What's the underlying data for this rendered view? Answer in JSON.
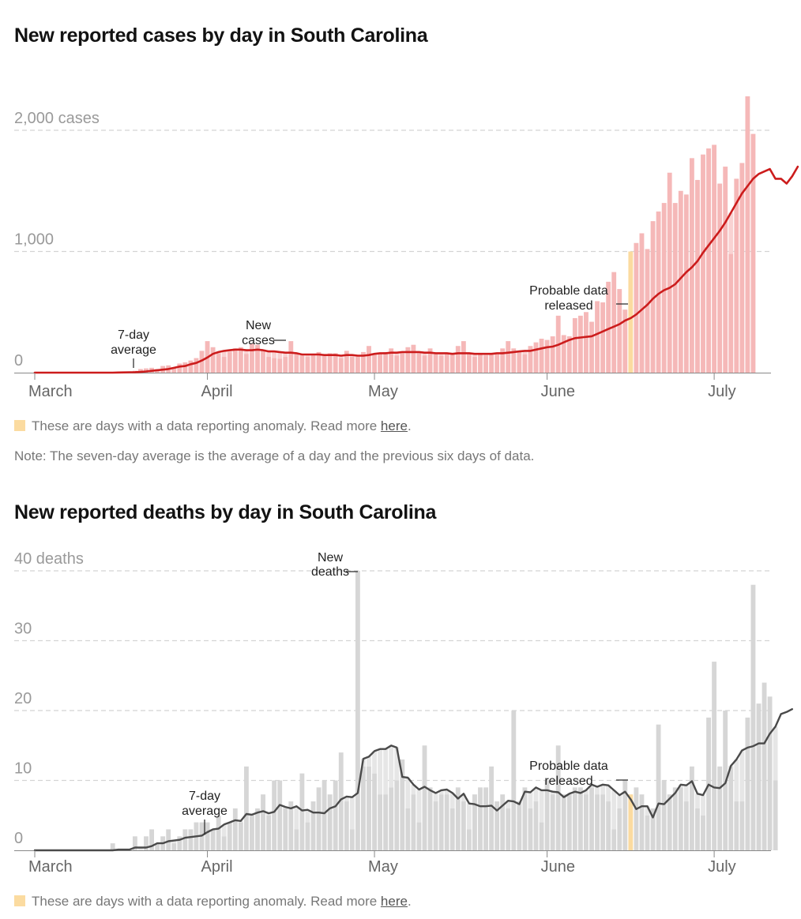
{
  "charts": {
    "cases": {
      "title": "New reported cases by day in South Carolina",
      "legend_text": "These are days with a data reporting anomaly. Read more ",
      "legend_link": "here",
      "legend_end": ".",
      "note": "Note: The seven-day average is the average of a day and the previous six days of data."
    },
    "deaths": {
      "title": "New reported deaths by day in South Carolina",
      "legend_text": "These are days with a data reporting anomaly. Read more ",
      "legend_link": "here",
      "legend_end": "."
    }
  },
  "colors": {
    "cases_bar": "#f5b8b8",
    "cases_bar_light": "#f9d2d2",
    "cases_line": "#cc1c1c",
    "deaths_bar": "#d6d6d6",
    "deaths_bar_light": "#e6e6e6",
    "deaths_line": "#4a4a4a",
    "anomaly": "#fbdba0"
  },
  "chart_data": [
    {
      "type": "bar",
      "id": "cases",
      "title": "New reported cases by day in South Carolina",
      "start_date": "Mar 1",
      "x_tick_labels": [
        "March",
        "April",
        "May",
        "June",
        "July"
      ],
      "x_tick_days": [
        0,
        31,
        61,
        92,
        122
      ],
      "y_ticks": [
        0,
        1000,
        2000
      ],
      "y_tick_labels": [
        "0",
        "1,000",
        "2,000 cases"
      ],
      "ylim": [
        0,
        2000
      ],
      "anomaly_days": [
        107
      ],
      "annotations": [
        {
          "text": [
            "7-day",
            "average"
          ],
          "day": 18,
          "target": "average"
        },
        {
          "text": [
            "New",
            "cases"
          ],
          "day": 45,
          "target": "bar"
        },
        {
          "text": [
            "Probable data",
            "released"
          ],
          "day": 107,
          "target": "anomaly"
        }
      ],
      "series": [
        {
          "name": "New cases",
          "values": [
            0,
            0,
            0,
            0,
            0,
            0,
            0,
            0,
            0,
            0,
            0,
            0,
            0,
            0,
            1,
            2,
            5,
            9,
            15,
            30,
            35,
            40,
            30,
            55,
            60,
            45,
            75,
            85,
            100,
            120,
            180,
            260,
            210,
            160,
            130,
            170,
            200,
            210,
            155,
            240,
            230,
            190,
            130,
            120,
            115,
            130,
            260,
            150,
            140,
            130,
            150,
            170,
            140,
            160,
            160,
            120,
            180,
            130,
            130,
            170,
            220,
            150,
            160,
            170,
            200,
            140,
            160,
            210,
            230,
            160,
            140,
            200,
            150,
            140,
            160,
            150,
            220,
            260,
            160,
            130,
            150,
            140,
            150,
            150,
            200,
            260,
            200,
            170,
            150,
            220,
            250,
            280,
            270,
            300,
            470,
            310,
            300,
            450,
            470,
            500,
            420,
            590,
            580,
            750,
            830,
            690,
            520,
            1000,
            1070,
            1150,
            1020,
            1250,
            1330,
            1400,
            1650,
            1400,
            1500,
            1470,
            1770,
            1590,
            1800,
            1850,
            1880,
            1560,
            1700,
            980,
            1600,
            1730,
            2280,
            1970
          ]
        },
        {
          "name": "7-day average",
          "values": [
            0,
            0,
            0,
            0,
            0,
            0,
            0,
            0,
            0,
            0,
            0,
            0,
            0,
            0,
            0,
            1,
            2,
            3,
            4,
            6,
            10,
            15,
            20,
            25,
            30,
            40,
            50,
            55,
            70,
            80,
            100,
            125,
            155,
            170,
            180,
            185,
            190,
            190,
            185,
            185,
            190,
            185,
            175,
            175,
            170,
            165,
            165,
            160,
            150,
            150,
            150,
            150,
            145,
            145,
            145,
            140,
            145,
            145,
            140,
            140,
            145,
            155,
            160,
            160,
            165,
            165,
            170,
            170,
            170,
            170,
            165,
            165,
            160,
            160,
            160,
            155,
            160,
            160,
            160,
            155,
            155,
            155,
            155,
            160,
            160,
            165,
            170,
            175,
            180,
            180,
            190,
            200,
            210,
            215,
            230,
            250,
            270,
            285,
            290,
            295,
            300,
            320,
            340,
            360,
            380,
            400,
            430,
            450,
            480,
            520,
            560,
            610,
            650,
            680,
            700,
            730,
            780,
            830,
            870,
            920,
            990,
            1050,
            1110,
            1170,
            1240,
            1320,
            1400,
            1480,
            1540,
            1600,
            1640,
            1660,
            1680,
            1600,
            1600,
            1560,
            1620,
            1700
          ]
        }
      ]
    },
    {
      "type": "bar",
      "id": "deaths",
      "title": "New reported deaths by day in South Carolina",
      "start_date": "Mar 1",
      "x_tick_labels": [
        "March",
        "April",
        "May",
        "June",
        "July"
      ],
      "x_tick_days": [
        0,
        31,
        61,
        92,
        122
      ],
      "y_ticks": [
        0,
        10,
        20,
        30,
        40
      ],
      "y_tick_labels": [
        "0",
        "10",
        "20",
        "30",
        "40 deaths"
      ],
      "ylim": [
        0,
        40
      ],
      "anomaly_days": [
        107
      ],
      "annotations": [
        {
          "text": [
            "7-day",
            "average"
          ],
          "day": 31,
          "target": "average"
        },
        {
          "text": [
            "New",
            "deaths"
          ],
          "day": 58,
          "target": "bar"
        },
        {
          "text": [
            "Probable data",
            "released"
          ],
          "day": 107,
          "target": "anomaly"
        }
      ],
      "series": [
        {
          "name": "New deaths",
          "values": [
            0,
            0,
            0,
            0,
            0,
            0,
            0,
            0,
            0,
            0,
            0,
            0,
            0,
            0,
            1,
            0,
            0,
            0,
            2,
            0,
            2,
            3,
            1,
            2,
            3,
            1,
            2,
            3,
            3,
            4,
            4,
            4,
            3,
            5,
            2,
            4,
            6,
            4,
            12,
            5,
            6,
            8,
            5,
            10,
            10,
            6,
            7,
            3,
            11,
            4,
            7,
            9,
            10,
            8,
            10,
            14,
            7,
            3,
            40,
            12,
            12,
            11,
            8,
            8,
            9,
            10,
            13,
            6,
            8,
            4,
            15,
            9,
            7,
            8,
            8,
            6,
            9,
            7,
            3,
            8,
            9,
            9,
            12,
            7,
            8,
            6,
            20,
            7,
            9,
            6,
            7,
            4,
            10,
            8,
            15,
            8,
            8,
            9,
            9,
            8,
            9,
            8,
            8,
            7,
            3,
            6,
            10,
            8,
            9,
            8,
            5,
            6,
            18,
            10,
            8,
            9,
            9,
            7,
            12,
            6,
            5,
            19,
            27,
            12,
            20,
            12,
            7,
            7,
            19,
            38,
            21,
            24,
            22,
            10
          ]
        },
        {
          "name": "7-day average",
          "values": [
            0,
            0,
            0,
            0,
            0,
            0,
            0,
            0,
            0,
            0,
            0,
            0,
            0,
            0,
            0,
            0.1,
            0.1,
            0.1,
            0.4,
            0.4,
            0.4,
            0.6,
            1,
            1,
            1.3,
            1.4,
            1.5,
            1.8,
            1.9,
            2,
            2.1,
            2.6,
            3,
            3.1,
            3.7,
            4,
            4.3,
            4.2,
            5.2,
            5.1,
            5.4,
            5.6,
            5.3,
            5.5,
            6.5,
            6.2,
            6,
            6.3,
            5.7,
            5.8,
            5.4,
            5.4,
            5.3,
            6,
            6.3,
            7.3,
            7.7,
            7.6,
            8.2,
            13.1,
            13.4,
            14.2,
            14.5,
            14.5,
            15,
            14.7,
            10.5,
            10.4,
            9.4,
            8.7,
            9.1,
            8.6,
            8.2,
            8.6,
            8.7,
            8.2,
            7.4,
            8.1,
            6.7,
            6.6,
            6.3,
            6.3,
            6.4,
            5.7,
            6.4,
            7.1,
            7,
            6.6,
            8.4,
            8.3,
            9,
            8.6,
            8.6,
            8.4,
            8.3,
            7.6,
            8.1,
            8.4,
            8.2,
            8.6,
            9.4,
            9.1,
            9.4,
            9.3,
            8.6,
            7.9,
            8.4,
            7.3,
            5.9,
            6.3,
            6.3,
            4.7,
            6.7,
            6.6,
            7.4,
            8.2,
            9.4,
            9.3,
            9.9,
            8.1,
            7.9,
            9.4,
            9,
            8.9,
            9.6,
            12.1,
            13,
            14.3,
            14.7,
            14.9,
            15.3,
            15.3,
            16.7,
            17.7,
            19.5,
            19.8,
            20.2
          ]
        }
      ]
    }
  ]
}
